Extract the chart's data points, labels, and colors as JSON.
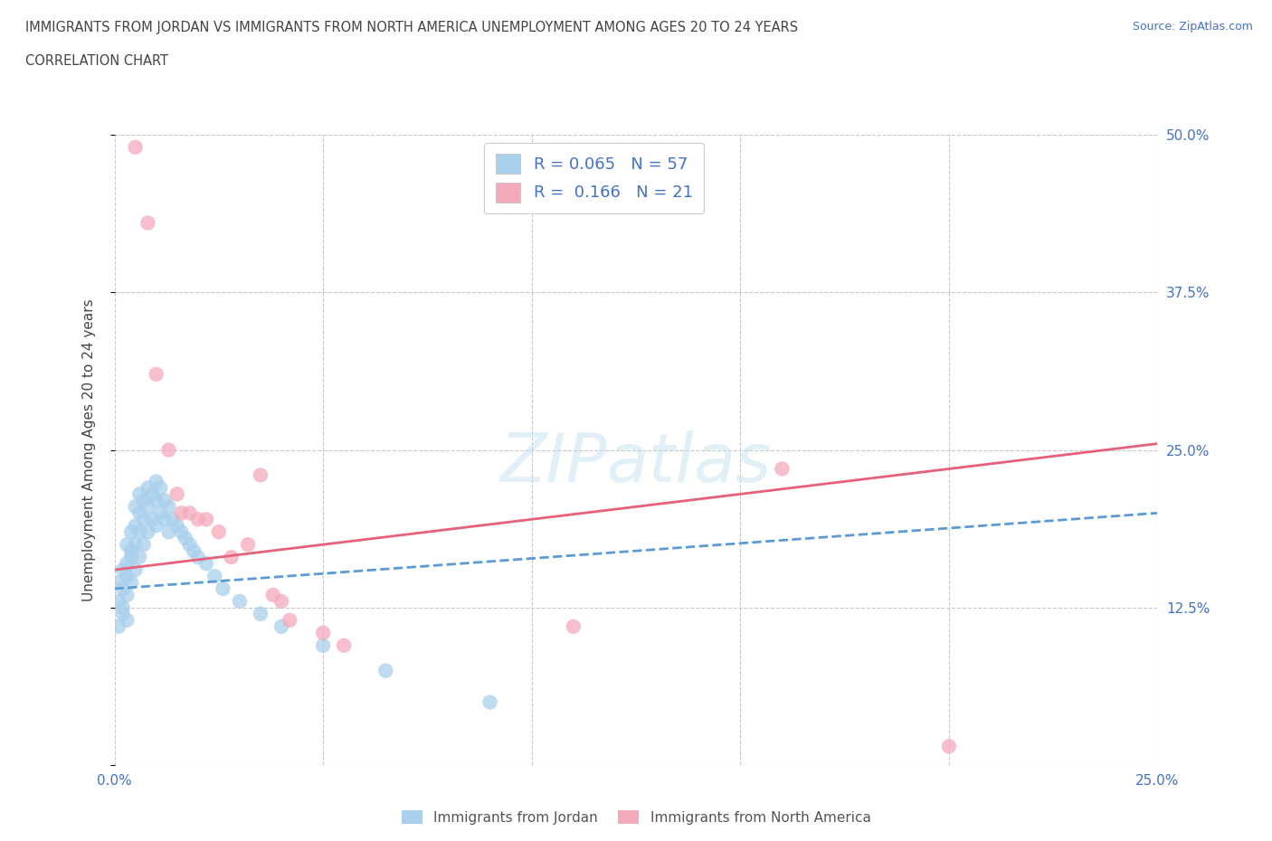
{
  "title_line1": "IMMIGRANTS FROM JORDAN VS IMMIGRANTS FROM NORTH AMERICA UNEMPLOYMENT AMONG AGES 20 TO 24 YEARS",
  "title_line2": "CORRELATION CHART",
  "source": "Source: ZipAtlas.com",
  "ylabel": "Unemployment Among Ages 20 to 24 years",
  "xlim": [
    0.0,
    0.25
  ],
  "ylim": [
    0.0,
    0.5
  ],
  "xticks": [
    0.0,
    0.05,
    0.1,
    0.15,
    0.2,
    0.25
  ],
  "yticks": [
    0.0,
    0.125,
    0.25,
    0.375,
    0.5
  ],
  "xtick_labels": [
    "0.0%",
    "",
    "",
    "",
    "",
    "25.0%"
  ],
  "ytick_labels_right": [
    "",
    "12.5%",
    "25.0%",
    "37.5%",
    "50.0%"
  ],
  "jordan_R": 0.065,
  "jordan_N": 57,
  "na_R": 0.166,
  "na_N": 21,
  "jordan_color": "#A8D0EC",
  "na_color": "#F5AABB",
  "jordan_line_color": "#5B9BD5",
  "na_line_color": "#E8607A",
  "jordan_x": [
    0.001,
    0.001,
    0.001,
    0.002,
    0.002,
    0.002,
    0.002,
    0.003,
    0.003,
    0.003,
    0.003,
    0.003,
    0.004,
    0.004,
    0.004,
    0.004,
    0.005,
    0.005,
    0.005,
    0.005,
    0.006,
    0.006,
    0.006,
    0.006,
    0.007,
    0.007,
    0.007,
    0.008,
    0.008,
    0.008,
    0.009,
    0.009,
    0.01,
    0.01,
    0.01,
    0.011,
    0.011,
    0.012,
    0.012,
    0.013,
    0.013,
    0.014,
    0.015,
    0.016,
    0.017,
    0.018,
    0.019,
    0.02,
    0.022,
    0.024,
    0.026,
    0.03,
    0.035,
    0.04,
    0.05,
    0.065,
    0.09
  ],
  "jordan_y": [
    0.13,
    0.145,
    0.11,
    0.125,
    0.155,
    0.14,
    0.12,
    0.16,
    0.175,
    0.15,
    0.135,
    0.115,
    0.17,
    0.185,
    0.165,
    0.145,
    0.19,
    0.205,
    0.175,
    0.155,
    0.2,
    0.215,
    0.185,
    0.165,
    0.21,
    0.195,
    0.175,
    0.22,
    0.205,
    0.185,
    0.215,
    0.195,
    0.225,
    0.21,
    0.19,
    0.22,
    0.2,
    0.21,
    0.195,
    0.205,
    0.185,
    0.195,
    0.19,
    0.185,
    0.18,
    0.175,
    0.17,
    0.165,
    0.16,
    0.15,
    0.14,
    0.13,
    0.12,
    0.11,
    0.095,
    0.075,
    0.05
  ],
  "na_x": [
    0.005,
    0.008,
    0.01,
    0.013,
    0.015,
    0.016,
    0.018,
    0.02,
    0.022,
    0.025,
    0.028,
    0.032,
    0.035,
    0.038,
    0.04,
    0.042,
    0.05,
    0.055,
    0.11,
    0.16,
    0.2
  ],
  "na_y": [
    0.49,
    0.43,
    0.31,
    0.25,
    0.215,
    0.2,
    0.2,
    0.195,
    0.195,
    0.185,
    0.165,
    0.175,
    0.23,
    0.135,
    0.13,
    0.115,
    0.105,
    0.095,
    0.11,
    0.235,
    0.015
  ],
  "watermark": "ZIPatlas",
  "background_color": "#FFFFFF",
  "grid_color": "#C8C8C8",
  "title_color": "#444444",
  "legend_text_color": "#4472C4",
  "bottom_legend_color": "#555555"
}
